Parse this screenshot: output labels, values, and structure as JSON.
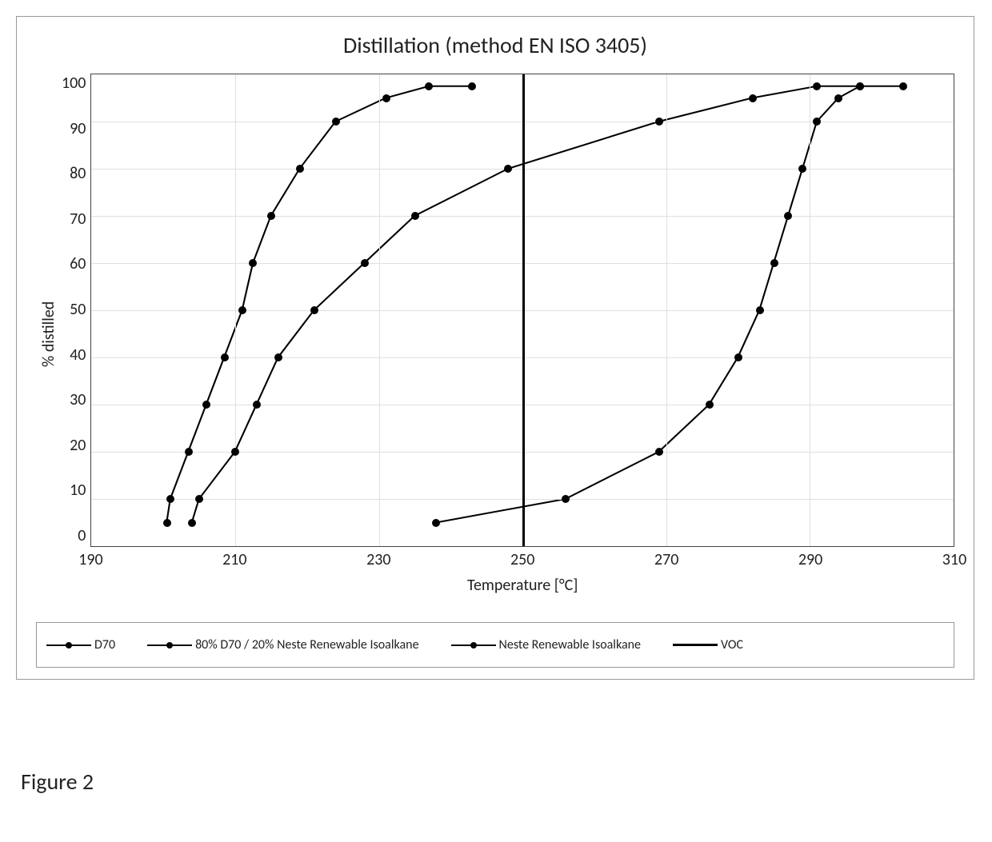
{
  "chart": {
    "type": "line",
    "title": "Distillation (method EN ISO 3405)",
    "title_fontsize": 28,
    "xaxis": {
      "label": "Temperature [°C]",
      "min": 190,
      "max": 310,
      "tick_step": 20,
      "ticks": [
        190,
        210,
        230,
        250,
        270,
        290,
        310
      ],
      "label_fontsize": 20,
      "tick_fontsize": 20
    },
    "yaxis": {
      "label": "% distilled",
      "min": 0,
      "max": 100,
      "tick_step": 10,
      "ticks": [
        0,
        10,
        20,
        30,
        40,
        50,
        60,
        70,
        80,
        90,
        100
      ],
      "label_fontsize": 20,
      "tick_fontsize": 20
    },
    "grid_color": "#e0e0e0",
    "border_color": "#444444",
    "background_color": "#ffffff",
    "line_width": 2,
    "marker_size": 10,
    "voc": {
      "label": "VOC",
      "x": 250,
      "color": "#000000",
      "line_width": 3
    },
    "series": [
      {
        "name": "D70",
        "label": "D70",
        "color": "#000000",
        "marker": "circle",
        "x": [
          200.5,
          201,
          203.5,
          206,
          208.5,
          211,
          212.5,
          215,
          219,
          224,
          231,
          237,
          243
        ],
        "y": [
          5,
          10,
          20,
          30,
          40,
          50,
          60,
          70,
          80,
          90,
          95,
          97.5,
          97.5
        ]
      },
      {
        "name": "Mix_80_20",
        "label": "80% D70 / 20% Neste Renewable Isoalkane",
        "color": "#000000",
        "marker": "circle",
        "x": [
          204,
          205,
          210,
          213,
          216,
          221,
          228,
          235,
          248,
          269,
          282,
          291,
          297
        ],
        "y": [
          5,
          10,
          20,
          30,
          40,
          50,
          60,
          70,
          80,
          90,
          95,
          97.5,
          97.5
        ]
      },
      {
        "name": "Neste_Isoalkane",
        "label": "Neste Renewable Isoalkane",
        "color": "#000000",
        "marker": "circle",
        "x": [
          238,
          256,
          269,
          276,
          280,
          283,
          285,
          287,
          289,
          291,
          294,
          297,
          303
        ],
        "y": [
          5,
          10,
          20,
          30,
          40,
          50,
          60,
          70,
          80,
          90,
          95,
          97.5,
          97.5
        ]
      }
    ],
    "legend": {
      "border_color": "#999999",
      "font_size": 16,
      "items": [
        {
          "label": "D70",
          "has_marker": true
        },
        {
          "label": "80% D70 / 20% Neste Renewable Isoalkane",
          "has_marker": true
        },
        {
          "label": "Neste Renewable Isoalkane",
          "has_marker": true
        },
        {
          "label": "VOC",
          "has_marker": false
        }
      ]
    }
  },
  "figure_caption": "Figure 2"
}
